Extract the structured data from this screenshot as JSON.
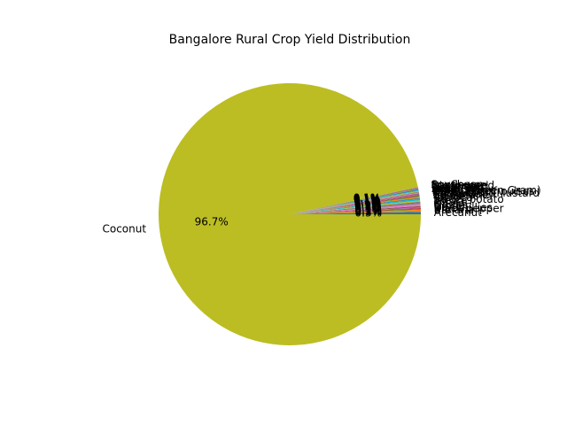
{
  "chart_data": {
    "type": "pie",
    "title": "Bangalore Rural Crop Yield Distribution",
    "startangle_deg": 0,
    "direction": "counterclockwise",
    "autopct_format": "%.1f%%",
    "slices": [
      {
        "label": "Arecanut",
        "value": 0.3,
        "color": "#1f77b4"
      },
      {
        "label": "Banana",
        "value": 0.25,
        "color": "#ff7f0e"
      },
      {
        "label": "Black pepper",
        "value": 0.1,
        "color": "#2ca02c"
      },
      {
        "label": "Dry chillies",
        "value": 0.1,
        "color": "#d62728"
      },
      {
        "label": "Garlic",
        "value": 0.1,
        "color": "#9467bd"
      },
      {
        "label": "Ginger",
        "value": 0.15,
        "color": "#8c564b"
      },
      {
        "label": "Onion",
        "value": 0.25,
        "color": "#e377c2"
      },
      {
        "label": "Potato",
        "value": 0.3,
        "color": "#7f7f7f"
      },
      {
        "label": "Sweet potato",
        "value": 0.15,
        "color": "#bcbd22"
      },
      {
        "label": "Tapioca",
        "value": 0.2,
        "color": "#17becf"
      },
      {
        "label": "Turmeric",
        "value": 0.1,
        "color": "#1f77b4"
      },
      {
        "label": "Sugarcane",
        "value": 0.15,
        "color": "#ff7f0e"
      },
      {
        "label": "Cotton(lint)",
        "value": 0.1,
        "color": "#2ca02c"
      },
      {
        "label": "Rapeseed &Mustard",
        "value": 0.1,
        "color": "#d62728"
      },
      {
        "label": "Horse-gram",
        "value": 0.1,
        "color": "#9467bd"
      },
      {
        "label": "Other Kharif pulses",
        "value": 0.1,
        "color": "#8c564b"
      },
      {
        "label": "Moong(Green Gram)",
        "value": 0.1,
        "color": "#e377c2"
      },
      {
        "label": "Urad",
        "value": 0.1,
        "color": "#7f7f7f"
      },
      {
        "label": "Arhar/Tur",
        "value": 0.1,
        "color": "#bcbd22"
      },
      {
        "label": "Sesamum",
        "value": 0.1,
        "color": "#17becf"
      },
      {
        "label": "Groundnut",
        "value": 0.1,
        "color": "#1f77b4"
      },
      {
        "label": "Niger seed",
        "value": 0.05,
        "color": "#ff7f0e"
      },
      {
        "label": "Castor seed",
        "value": 0.05,
        "color": "#2ca02c"
      },
      {
        "label": "Sunflower",
        "value": 0.05,
        "color": "#d62728"
      },
      {
        "label": "Soyabean",
        "value": 0.1,
        "color": "#9467bd"
      },
      {
        "label": "Coconut",
        "value": 96.7,
        "color": "#bcbd22"
      }
    ]
  }
}
